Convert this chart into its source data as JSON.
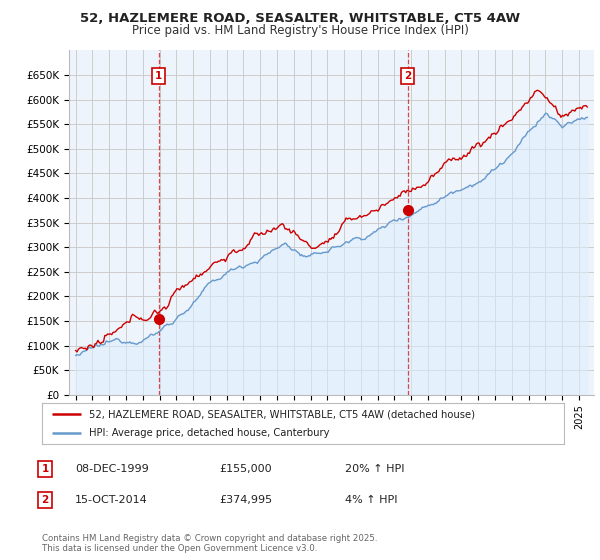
{
  "title_line1": "52, HAZLEMERE ROAD, SEASALTER, WHITSTABLE, CT5 4AW",
  "title_line2": "Price paid vs. HM Land Registry's House Price Index (HPI)",
  "ylim": [
    0,
    700000
  ],
  "yticks": [
    0,
    50000,
    100000,
    150000,
    200000,
    250000,
    300000,
    350000,
    400000,
    450000,
    500000,
    550000,
    600000,
    650000
  ],
  "ytick_labels": [
    "£0",
    "£50K",
    "£100K",
    "£150K",
    "£200K",
    "£250K",
    "£300K",
    "£350K",
    "£400K",
    "£450K",
    "£500K",
    "£550K",
    "£600K",
    "£650K"
  ],
  "sale1_date": "08-DEC-1999",
  "sale1_price": 155000,
  "sale1_hpi_change": "20% ↑ HPI",
  "sale1_x": 1999.94,
  "sale2_date": "15-OCT-2014",
  "sale2_price": 374995,
  "sale2_hpi_change": "4% ↑ HPI",
  "sale2_x": 2014.79,
  "legend_line1": "52, HAZLEMERE ROAD, SEASALTER, WHITSTABLE, CT5 4AW (detached house)",
  "legend_line2": "HPI: Average price, detached house, Canterbury",
  "footnote": "Contains HM Land Registry data © Crown copyright and database right 2025.\nThis data is licensed under the Open Government Licence v3.0.",
  "line_color_price": "#cc0000",
  "line_color_hpi": "#6699cc",
  "fill_color_hpi": "#ddeeff",
  "vline_color": "#cc0000",
  "grid_color": "#cccccc",
  "background_color": "#ffffff",
  "plot_bg_color": "#eef4fb"
}
